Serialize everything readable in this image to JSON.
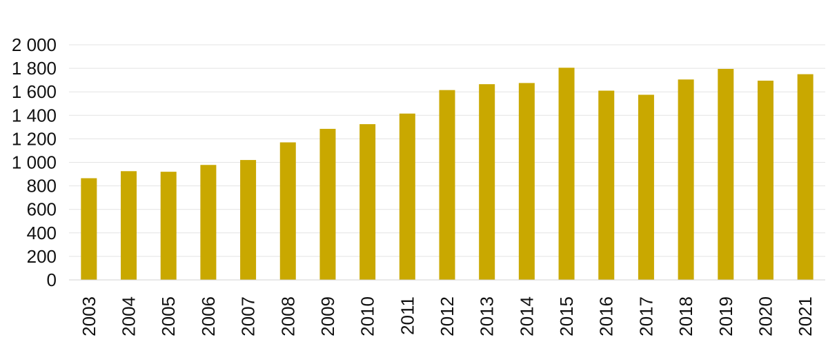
{
  "chart_data": {
    "type": "bar",
    "title": "",
    "xlabel": "",
    "ylabel": "",
    "categories": [
      "2003",
      "2004",
      "2005",
      "2006",
      "2007",
      "2008",
      "2009",
      "2010",
      "2011",
      "2012",
      "2013",
      "2014",
      "2015",
      "2016",
      "2017",
      "2018",
      "2019",
      "2020",
      "2021"
    ],
    "values": [
      865,
      925,
      920,
      978,
      1020,
      1170,
      1285,
      1325,
      1415,
      1615,
      1665,
      1675,
      1805,
      1610,
      1575,
      1705,
      1795,
      1695,
      1750
    ],
    "ylim": [
      0,
      2000
    ],
    "yticks": [
      0,
      200,
      400,
      600,
      800,
      1000,
      1200,
      1400,
      1600,
      1800,
      2000
    ],
    "ytick_labels": [
      "0",
      "200",
      "400",
      "600",
      "800",
      "1 000",
      "1 200",
      "1 400",
      "1 600",
      "1 800",
      "2 000"
    ],
    "grid": true,
    "legend": "none",
    "colors": {
      "bar": "#c9a800"
    }
  }
}
